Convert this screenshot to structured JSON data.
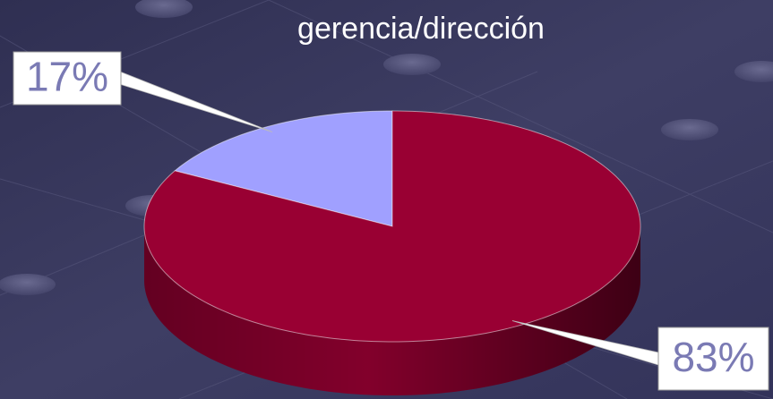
{
  "chart_data": {
    "type": "pie",
    "title": "gerencia/dirección",
    "values": [
      17,
      83
    ],
    "value_labels": [
      "17%",
      "83%"
    ],
    "colors": [
      "#a0a0ff",
      "#990033"
    ]
  }
}
